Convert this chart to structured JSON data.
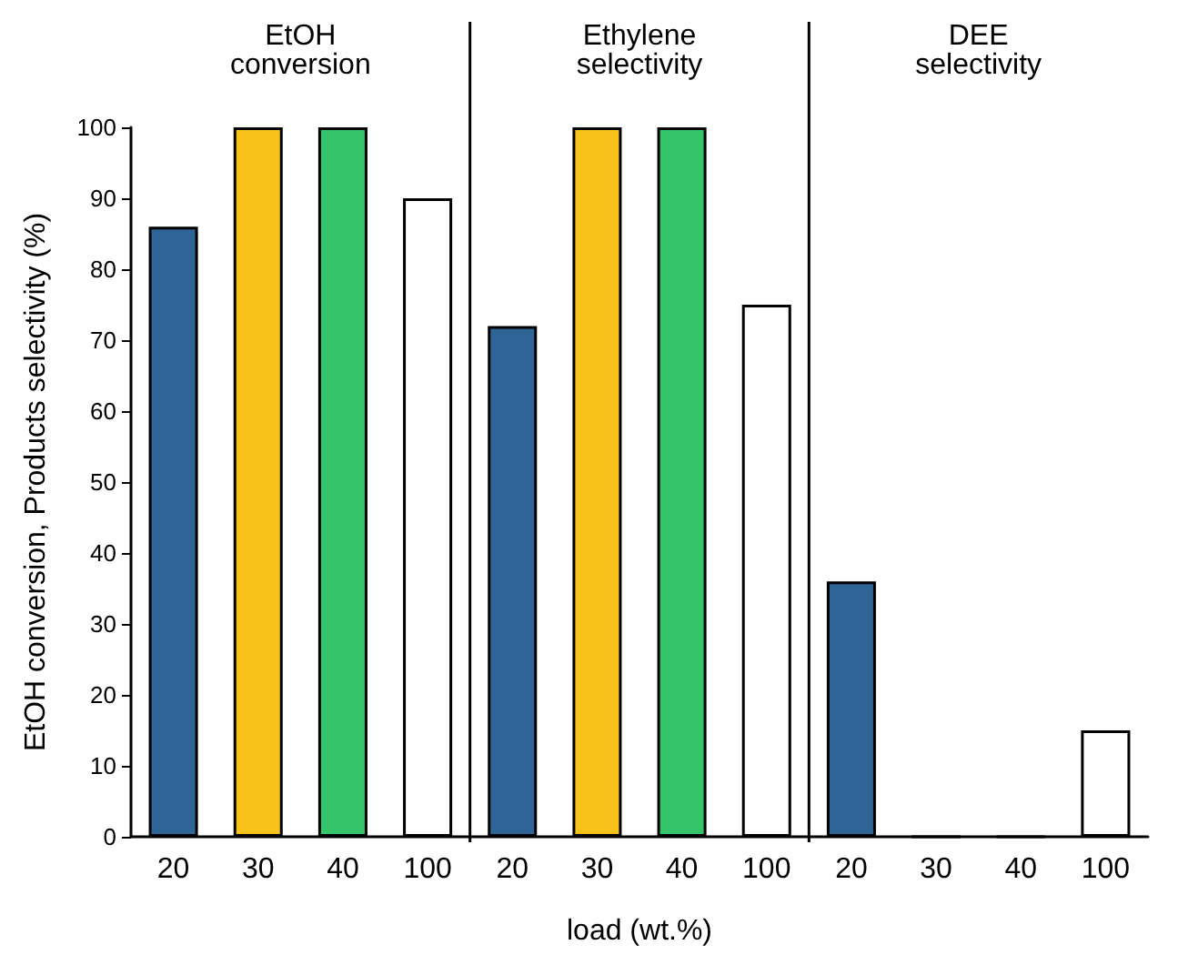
{
  "chart_data": {
    "type": "bar",
    "xlabel": "load (wt.%)",
    "ylabel": "EtOH conversion, Products selectivity (%)",
    "categories": [
      "20",
      "30",
      "40",
      "100",
      "20",
      "30",
      "40",
      "100",
      "20",
      "30",
      "40",
      "100"
    ],
    "values": [
      86,
      100,
      100,
      90,
      72,
      100,
      100,
      75,
      36,
      0,
      0,
      15
    ],
    "colors": [
      "#2f6496",
      "#f7c21a",
      "#35c46a",
      "#ffffff",
      "#2f6496",
      "#f7c21a",
      "#35c46a",
      "#ffffff",
      "#2f6496",
      "#f7c21a",
      "#35c46a",
      "#ffffff"
    ],
    "ylim": [
      0,
      100
    ],
    "yticks": [
      0,
      10,
      20,
      30,
      40,
      50,
      60,
      70,
      80,
      90,
      100
    ],
    "annotations": [
      "EtOH\nconversion",
      "Ethylene\nselectivity",
      "DEE\nselectivity"
    ]
  }
}
